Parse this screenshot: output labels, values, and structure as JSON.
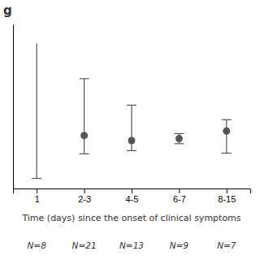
{
  "chart_data": {
    "type": "errorbar",
    "title": "g",
    "categories": [
      "1",
      "2-3",
      "4-5",
      "6-7",
      "8-15"
    ],
    "values": [
      null,
      420,
      380,
      395,
      455
    ],
    "ci_upper": [
      1150,
      870,
      660,
      435,
      545
    ],
    "ci_lower": [
      80,
      275,
      300,
      355,
      280
    ],
    "n_labels": [
      "N=8",
      "N=21",
      "N=13",
      "N=9",
      "N=7"
    ],
    "x_label": "Time (days) since the onset of clinical symptoms",
    "ylim": [
      0,
      1300
    ],
    "tick_labels": "x",
    "grid": false,
    "color": "#555555"
  }
}
